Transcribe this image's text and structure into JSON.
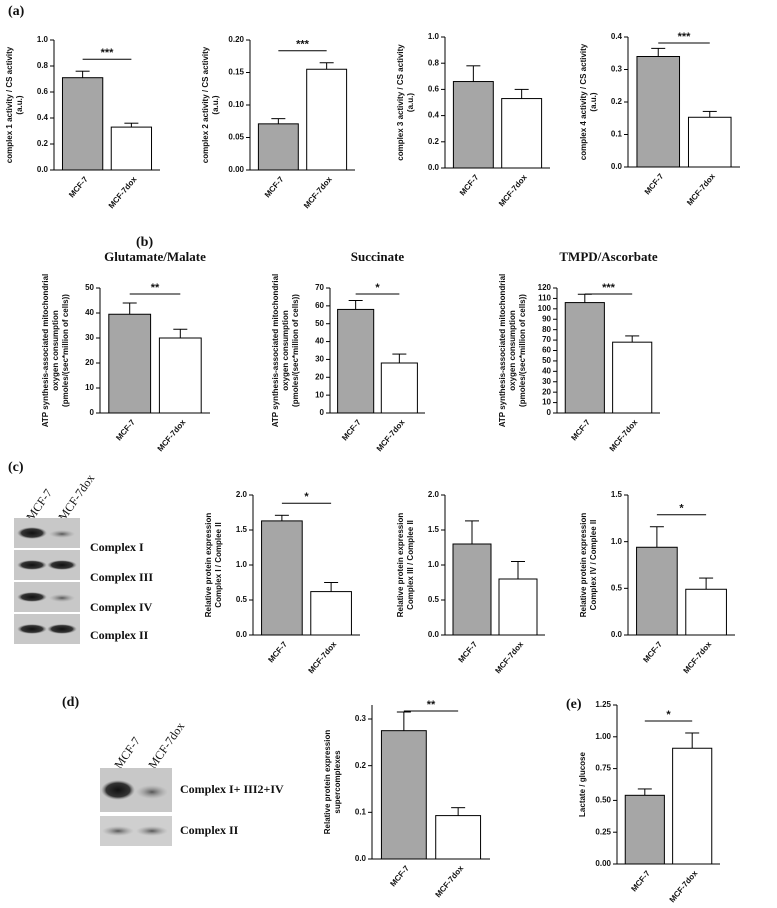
{
  "panels": [
    "(a)",
    "(b)",
    "(c)",
    "(d)",
    "(e)"
  ],
  "blots": {
    "c": {
      "lanes": [
        "MCF-7",
        "MCF-7dox"
      ],
      "rows": [
        "Complex I",
        "Complex III",
        "Complex IV",
        "Complex II"
      ]
    },
    "d": {
      "lanes": [
        "MCF-7",
        "MCF-7dox"
      ],
      "rows": [
        "Complex I+ III2+IV",
        "Complex II"
      ]
    }
  },
  "chart_data": [
    {
      "type": "bar",
      "ylabel": [
        "complex 1 activity / CS activity",
        "(a.u.)"
      ],
      "categories": [
        "MCF-7",
        "MCF-7dox"
      ],
      "values": [
        0.71,
        0.33
      ],
      "errors": [
        0.05,
        0.03
      ],
      "colors": [
        "#a6a6a6",
        "#ffffff"
      ],
      "significance": "***",
      "ylim": [
        0,
        1.0
      ],
      "yticks": [
        {
          "value": 0,
          "label": "0.0"
        },
        {
          "value": 0.2,
          "label": "0.2"
        },
        {
          "value": 0.4,
          "label": "0.4"
        },
        {
          "value": 0.6,
          "label": "0.6"
        },
        {
          "value": 0.8,
          "label": "0.8"
        },
        {
          "value": 1.0,
          "label": "1.0"
        }
      ]
    },
    {
      "type": "bar",
      "ylabel": [
        "complex 2 activity / CS activity",
        "(a.u.)"
      ],
      "categories": [
        "MCF-7",
        "MCF-7dox"
      ],
      "values": [
        0.071,
        0.155
      ],
      "errors": [
        0.008,
        0.01
      ],
      "colors": [
        "#a6a6a6",
        "#ffffff"
      ],
      "significance": "***",
      "ylim": [
        0,
        0.2
      ],
      "yticks": [
        {
          "value": 0,
          "label": "0.00"
        },
        {
          "value": 0.05,
          "label": "0.05"
        },
        {
          "value": 0.1,
          "label": "0.10"
        },
        {
          "value": 0.15,
          "label": "0.15"
        },
        {
          "value": 0.2,
          "label": "0.20"
        }
      ]
    },
    {
      "type": "bar",
      "ylabel": [
        "complex 3 activity / CS activity",
        "(a.u.)"
      ],
      "categories": [
        "MCF-7",
        "MCF-7dox"
      ],
      "values": [
        0.66,
        0.53
      ],
      "errors": [
        0.12,
        0.07
      ],
      "colors": [
        "#a6a6a6",
        "#ffffff"
      ],
      "ylim": [
        0,
        1.0
      ],
      "yticks": [
        {
          "value": 0,
          "label": "0.0"
        },
        {
          "value": 0.2,
          "label": "0.2"
        },
        {
          "value": 0.4,
          "label": "0.4"
        },
        {
          "value": 0.6,
          "label": "0.6"
        },
        {
          "value": 0.8,
          "label": "0.8"
        },
        {
          "value": 1.0,
          "label": "1.0"
        }
      ]
    },
    {
      "type": "bar",
      "ylabel": [
        "complex 4 activity / CS activity",
        "(a.u.)"
      ],
      "categories": [
        "MCF-7",
        "MCF-7dox"
      ],
      "values": [
        0.34,
        0.153
      ],
      "errors": [
        0.025,
        0.018
      ],
      "colors": [
        "#a6a6a6",
        "#ffffff"
      ],
      "significance": "***",
      "ylim": [
        0,
        0.4
      ],
      "yticks": [
        {
          "value": 0,
          "label": "0.0"
        },
        {
          "value": 0.1,
          "label": "0.1"
        },
        {
          "value": 0.2,
          "label": "0.2"
        },
        {
          "value": 0.3,
          "label": "0.3"
        },
        {
          "value": 0.4,
          "label": "0.4"
        }
      ]
    },
    {
      "type": "bar",
      "title": "Glutamate/Malate",
      "ylabel": [
        "ATP synthesis-associated mitochondrial",
        "oxygen consumption",
        "(pmoles/(sec*million of cells))"
      ],
      "categories": [
        "MCF-7",
        "MCF-7dox"
      ],
      "values": [
        39.5,
        30
      ],
      "errors": [
        4.5,
        3.5
      ],
      "colors": [
        "#a6a6a6",
        "#ffffff"
      ],
      "significance": "**",
      "ylim": [
        0,
        50
      ],
      "yticks": [
        0,
        10,
        20,
        30,
        40,
        50
      ]
    },
    {
      "type": "bar",
      "title": "Succinate",
      "ylabel": [
        "ATP synthesis-associated mitochondrial",
        "oxygen consumption",
        "(pmoles/(sec*million of cells))"
      ],
      "categories": [
        "MCF-7",
        "MCF-7dox"
      ],
      "values": [
        58,
        28
      ],
      "errors": [
        5,
        5
      ],
      "colors": [
        "#a6a6a6",
        "#ffffff"
      ],
      "significance": "*",
      "ylim": [
        0,
        70
      ],
      "yticks": [
        0,
        10,
        20,
        30,
        40,
        50,
        60,
        70
      ]
    },
    {
      "type": "bar",
      "title": "TMPD/Ascorbate",
      "ylabel": [
        "ATP synthesis-associated mitochondrial",
        "oxygen consumption",
        "(pmoles/(sec*million of cells))"
      ],
      "categories": [
        "MCF-7",
        "MCF-7dox"
      ],
      "values": [
        106,
        68
      ],
      "errors": [
        8,
        6
      ],
      "colors": [
        "#a6a6a6",
        "#ffffff"
      ],
      "significance": "***",
      "ylim": [
        0,
        120
      ],
      "yticks": [
        0,
        10,
        20,
        30,
        40,
        50,
        60,
        70,
        80,
        90,
        100,
        110,
        120
      ]
    },
    {
      "type": "bar",
      "ylabel": [
        "Relative protein expression",
        "Complex I / Complee II"
      ],
      "categories": [
        "MCF-7",
        "MCF-7dox"
      ],
      "values": [
        1.63,
        0.62
      ],
      "errors": [
        0.08,
        0.13
      ],
      "colors": [
        "#a6a6a6",
        "#ffffff"
      ],
      "significance": "*",
      "ylim": [
        0,
        2.0
      ],
      "yticks": [
        {
          "value": 0,
          "label": "0.0"
        },
        {
          "value": 0.5,
          "label": "0.5"
        },
        {
          "value": 1.0,
          "label": "1.0"
        },
        {
          "value": 1.5,
          "label": "1.5"
        },
        {
          "value": 2.0,
          "label": "2.0"
        }
      ]
    },
    {
      "type": "bar",
      "ylabel": [
        "Relative protein expression",
        "Complex III / Complee II"
      ],
      "categories": [
        "MCF-7",
        "MCF-7dox"
      ],
      "values": [
        1.3,
        0.8
      ],
      "errors": [
        0.33,
        0.25
      ],
      "colors": [
        "#a6a6a6",
        "#ffffff"
      ],
      "ylim": [
        0,
        2.0
      ],
      "yticks": [
        {
          "value": 0,
          "label": "0.0"
        },
        {
          "value": 0.5,
          "label": "0.5"
        },
        {
          "value": 1.0,
          "label": "1.0"
        },
        {
          "value": 1.5,
          "label": "1.5"
        },
        {
          "value": 2.0,
          "label": "2.0"
        }
      ]
    },
    {
      "type": "bar",
      "ylabel": [
        "Relative protein expression",
        "Complex IV / Complee II"
      ],
      "categories": [
        "MCF-7",
        "MCF-7dox"
      ],
      "values": [
        0.94,
        0.49
      ],
      "errors": [
        0.22,
        0.12
      ],
      "colors": [
        "#a6a6a6",
        "#ffffff"
      ],
      "significance": "*",
      "ylim": [
        0,
        1.5
      ],
      "yticks": [
        {
          "value": 0,
          "label": "0.0"
        },
        {
          "value": 0.5,
          "label": "0.5"
        },
        {
          "value": 1.0,
          "label": "1.0"
        },
        {
          "value": 1.5,
          "label": "1.5"
        }
      ]
    },
    {
      "type": "bar",
      "ylabel": [
        "Relative protein expression",
        "supercomplexes"
      ],
      "categories": [
        "MCF-7",
        "MCF-7dox"
      ],
      "values": [
        0.275,
        0.093
      ],
      "errors": [
        0.04,
        0.017
      ],
      "colors": [
        "#a6a6a6",
        "#ffffff"
      ],
      "significance": "**",
      "ylim": [
        0,
        0.33
      ],
      "yticks": [
        {
          "value": 0,
          "label": "0.0"
        },
        {
          "value": 0.1,
          "label": "0.1"
        },
        {
          "value": 0.2,
          "label": "0.2"
        },
        {
          "value": 0.3,
          "label": "0.3"
        }
      ]
    },
    {
      "type": "bar",
      "ylabel": [
        "Lactate / glucose"
      ],
      "categories": [
        "MCF-7",
        "MCF-7dox"
      ],
      "values": [
        0.54,
        0.91
      ],
      "errors": [
        0.05,
        0.12
      ],
      "colors": [
        "#a6a6a6",
        "#ffffff"
      ],
      "significance": "*",
      "ylim": [
        0,
        1.25
      ],
      "yticks": [
        {
          "value": 0,
          "label": "0.00"
        },
        {
          "value": 0.25,
          "label": "0.25"
        },
        {
          "value": 0.5,
          "label": "0.50"
        },
        {
          "value": 0.75,
          "label": "0.75"
        },
        {
          "value": 1.0,
          "label": "1.00"
        },
        {
          "value": 1.25,
          "label": "1.25"
        }
      ]
    }
  ]
}
